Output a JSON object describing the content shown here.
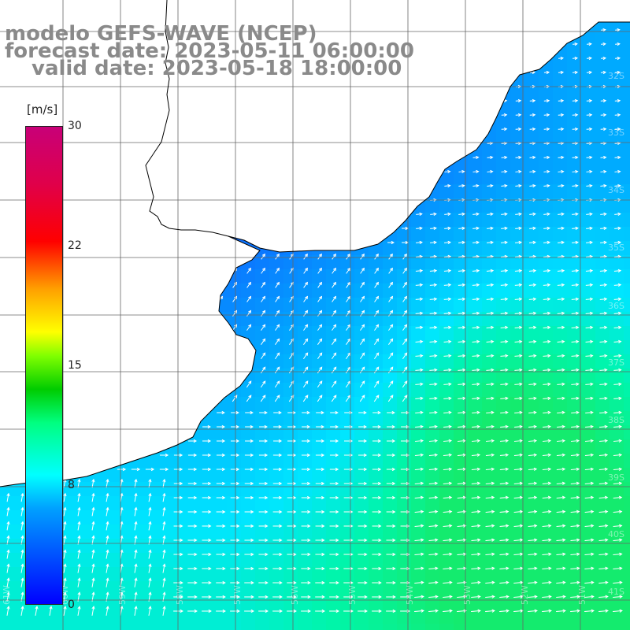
{
  "title": {
    "line1": "modelo GEFS-WAVE (NCEP)",
    "line2": "forecast date: 2023-05-11 06:00:00",
    "line3": "valid date: 2023-05-18 18:00:00"
  },
  "colorbar": {
    "unit": "[m/s]",
    "ticks": [
      "30",
      "22",
      "15",
      "8",
      "0"
    ],
    "tick_values": [
      30,
      22,
      15,
      8,
      0
    ],
    "range": [
      0,
      30
    ],
    "colors": [
      "#0000ff",
      "#0050ff",
      "#00a0ff",
      "#00ffff",
      "#00ff80",
      "#00cc00",
      "#80ff00",
      "#ffff00",
      "#ffa000",
      "#ff0000",
      "#e0004a",
      "#c80078"
    ]
  },
  "grid": {
    "lat_labels": [
      "32S",
      "33S",
      "34S",
      "35S",
      "36S",
      "37S",
      "38S",
      "39S",
      "40S",
      "41S"
    ],
    "lon_labels": [
      "61W",
      "60W",
      "59W",
      "58W",
      "57W",
      "56W",
      "55W",
      "54W",
      "53W",
      "52W",
      "51W"
    ]
  },
  "colors": {
    "land": "#ffffff",
    "coastline": "#000000",
    "gridline": "#666666",
    "arrow": "#ffffff",
    "calm_wind": "#1e5cff",
    "moderate_wind": "#00d8ff",
    "strong_wind": "#10f090"
  }
}
